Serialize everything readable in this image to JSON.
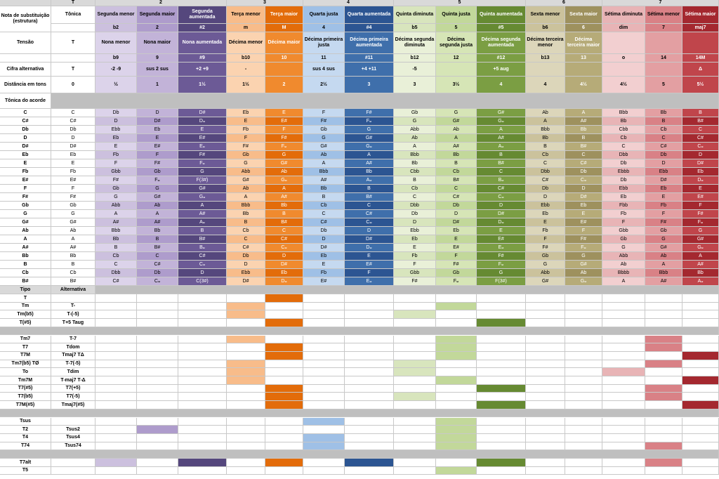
{
  "groups": [
    "T",
    "2",
    "3",
    "4",
    "5",
    "6",
    "7"
  ],
  "columns": [
    {
      "key": "T",
      "name": "Tônica",
      "structure": "",
      "tension": "T",
      "extra": "",
      "alt_cipher": "T",
      "distance": "0",
      "roots": [
        "C",
        "C#",
        "Db",
        "D",
        "D#",
        "Eb",
        "E",
        "Fb",
        "E#",
        "F",
        "F#",
        "Gb",
        "G",
        "G#",
        "Ab",
        "A",
        "A#",
        "Bb",
        "B",
        "Cb",
        "B#"
      ]
    },
    {
      "key": "b2",
      "name": "Segunda menor",
      "structure": "b2",
      "tension": "Nona menor",
      "extra": "b9",
      "alt_cipher": "-2 -9",
      "distance": "½",
      "roots": [
        "Db",
        "D",
        "Ebb",
        "Eb",
        "E",
        "Fb",
        "F",
        "Gbb",
        "F#",
        "Gb",
        "G",
        "Abb",
        "A",
        "A#",
        "Bbb",
        "Bb",
        "B",
        "Cb",
        "C",
        "Dbb",
        "C#"
      ]
    },
    {
      "key": "2",
      "name": "Segunda maior",
      "structure": "2",
      "tension": "Nona maior",
      "extra": "9",
      "alt_cipher": "sus 2 sus",
      "distance": "1",
      "roots": [
        "D",
        "D#",
        "Eb",
        "E",
        "E#",
        "F",
        "F#",
        "Gb",
        "F𝄪",
        "G",
        "G#",
        "Ab",
        "A",
        "A#",
        "Bb",
        "B",
        "B#",
        "C",
        "C#",
        "Db",
        "C𝄪"
      ]
    },
    {
      "key": "#2",
      "name": "Segunda aumentada",
      "structure": "#2",
      "tension": "Nona aumentada",
      "extra": "#9",
      "alt_cipher": "+2 +9",
      "distance": "1½",
      "roots": [
        "D#",
        "D𝄪",
        "E",
        "E#",
        "E𝄪",
        "F#",
        "F𝄪",
        "G",
        "F(3#)",
        "G#",
        "G𝄪",
        "A",
        "A#",
        "A𝄪",
        "B",
        "B#",
        "B𝄪",
        "C#",
        "C𝄪",
        "D",
        "C(3#)"
      ]
    },
    {
      "key": "m",
      "name": "Terça menor",
      "structure": "m",
      "tension": "Décima menor",
      "extra": "b10",
      "alt_cipher": "-",
      "distance": "1½",
      "roots": [
        "Eb",
        "E",
        "Fb",
        "F",
        "F#",
        "Gb",
        "G",
        "Abb",
        "G#",
        "Ab",
        "A",
        "Bbb",
        "Bb",
        "B",
        "Cb",
        "C",
        "C#",
        "Db",
        "D",
        "Ebb",
        "D#"
      ]
    },
    {
      "key": "M",
      "name": "Terça maior",
      "structure": "M",
      "tension": "Décima maior",
      "extra": "10",
      "alt_cipher": "",
      "distance": "2",
      "roots": [
        "E",
        "E#",
        "F",
        "F#",
        "F𝄪",
        "G",
        "G#",
        "Ab",
        "G𝄪",
        "A",
        "A#",
        "Bb",
        "B",
        "B#",
        "C",
        "C#",
        "C𝄪",
        "D",
        "D#",
        "Eb",
        "D𝄪"
      ]
    },
    {
      "key": "4",
      "name": "Quarta justa",
      "structure": "4",
      "tension": "Décima primeira justa",
      "extra": "11",
      "alt_cipher": "sus 4 sus",
      "distance": "2½",
      "roots": [
        "F",
        "F#",
        "Gb",
        "G",
        "G#",
        "Ab",
        "A",
        "Bbb",
        "A#",
        "Bb",
        "B",
        "Cb",
        "C",
        "C#",
        "Db",
        "D",
        "D#",
        "Eb",
        "E",
        "Fb",
        "E#"
      ]
    },
    {
      "key": "#4",
      "name": "Quarta aumentada",
      "structure": "#4",
      "tension": "Décima primeira aumentada",
      "extra": "#11",
      "alt_cipher": "+4 +11",
      "distance": "3",
      "roots": [
        "F#",
        "F𝄪",
        "G",
        "G#",
        "G𝄪",
        "A",
        "A#",
        "Bb",
        "A𝄪",
        "B",
        "B#",
        "C",
        "C#",
        "C𝄪",
        "D",
        "D#",
        "D𝄪",
        "E",
        "E#",
        "F",
        "E𝄪"
      ]
    },
    {
      "key": "b5",
      "name": "Quinta diminuta",
      "structure": "b5",
      "tension": "Décima segunda diminuta",
      "extra": "b12",
      "alt_cipher": "-5",
      "distance": "3",
      "roots": [
        "Gb",
        "G",
        "Abb",
        "Ab",
        "A",
        "Bbb",
        "Bb",
        "Cbb",
        "B",
        "Cb",
        "C",
        "Dbb",
        "Db",
        "D",
        "Ebb",
        "Eb",
        "E",
        "Fb",
        "F",
        "Gbb",
        "F#"
      ]
    },
    {
      "key": "5",
      "name": "Quinta justa",
      "structure": "5",
      "tension": "Décima segunda justa",
      "extra": "12",
      "alt_cipher": "",
      "distance": "3½",
      "roots": [
        "G",
        "G#",
        "Ab",
        "A",
        "A#",
        "Bb",
        "B",
        "Cb",
        "B#",
        "C",
        "C#",
        "Db",
        "D",
        "D#",
        "Eb",
        "E",
        "E#",
        "F",
        "F#",
        "Gb",
        "F𝄪"
      ]
    },
    {
      "key": "#5",
      "name": "Quinta aumentada",
      "structure": "#5",
      "tension": "Décima segunda aumentada",
      "extra": "#12",
      "alt_cipher": "+5 aug",
      "distance": "4",
      "roots": [
        "G#",
        "G𝄪",
        "A",
        "A#",
        "A𝄪",
        "B",
        "B#",
        "C",
        "B𝄪",
        "C#",
        "C𝄪",
        "D",
        "D#",
        "D𝄪",
        "E",
        "E#",
        "E𝄪",
        "F#",
        "F𝄪",
        "G",
        "F(3#)"
      ]
    },
    {
      "key": "b6",
      "name": "Sexta menor",
      "structure": "b6",
      "tension": "Décima terceira menor",
      "extra": "b13",
      "alt_cipher": "",
      "distance": "4",
      "roots": [
        "Ab",
        "A",
        "Bbb",
        "Bb",
        "B",
        "Cb",
        "C",
        "Dbb",
        "C#",
        "Db",
        "D",
        "Ebb",
        "Eb",
        "E",
        "Fb",
        "F",
        "F#",
        "Gb",
        "G",
        "Abb",
        "G#"
      ]
    },
    {
      "key": "6",
      "name": "Sexta maior",
      "structure": "6",
      "tension": "Décima terceira maior",
      "extra": "13",
      "alt_cipher": "",
      "distance": "4½",
      "roots": [
        "A",
        "A#",
        "Bb",
        "B",
        "B#",
        "C",
        "C#",
        "Db",
        "C𝄪",
        "D",
        "D#",
        "Eb",
        "E",
        "E#",
        "F",
        "F#",
        "F𝄪",
        "G",
        "G#",
        "Ab",
        "G𝄪"
      ]
    },
    {
      "key": "dim",
      "name": "Sétima diminuta",
      "structure": "dim",
      "tension": "",
      "extra": "o",
      "alt_cipher": "",
      "distance": "4½",
      "roots": [
        "Bbb",
        "Bb",
        "Cbb",
        "Cb",
        "C",
        "Dbb",
        "Db",
        "Ebbb",
        "Db",
        "Ebb",
        "Eb",
        "Fbb",
        "Fb",
        "F",
        "Gbb",
        "Gb",
        "G",
        "Abb",
        "Ab",
        "Bbbb",
        "A"
      ]
    },
    {
      "key": "7",
      "name": "Sétima menor",
      "structure": "7",
      "tension": "",
      "extra": "14",
      "alt_cipher": "",
      "distance": "5",
      "roots": [
        "Bb",
        "B",
        "Cb",
        "C",
        "C#",
        "Db",
        "D",
        "Ebb",
        "D#",
        "Eb",
        "E",
        "Fb",
        "F",
        "F#",
        "Gb",
        "G",
        "G#",
        "Ab",
        "A",
        "Bbb",
        "A#"
      ]
    },
    {
      "key": "maj7",
      "name": "Sétima maior",
      "structure": "maj7",
      "tension": "",
      "extra": "14M",
      "alt_cipher": "Δ",
      "distance": "5½",
      "roots": [
        "B",
        "B#",
        "C",
        "C#",
        "C𝄪",
        "D",
        "D#",
        "Eb",
        "D𝄪",
        "E",
        "E#",
        "F",
        "F#",
        "F𝄪",
        "G",
        "G#",
        "G𝄪",
        "A",
        "A#",
        "Bb",
        "A𝄪"
      ]
    }
  ],
  "row_labels": {
    "structure": "Nota de substituição (estrutura)",
    "tension": "Tensão",
    "alt_cipher": "Cifra alternativa",
    "distance": "Distância em tons",
    "root": "Tônica do acorde",
    "tipo": "Tipo",
    "alternativa": "Alternativa"
  },
  "colors": {
    "T": "#ffffff",
    "b2": [
      "#dcd3ea",
      "#ccc0de"
    ],
    "2": [
      "#c2b3d8",
      "#ae9ccc"
    ],
    "#2": [
      "#6c5a96",
      "#55477d"
    ],
    "m": [
      "#fbd3b0",
      "#f8bc8a"
    ],
    "M": [
      "#f08a2e",
      "#e36c0a"
    ],
    "4": [
      "#c5d9f0",
      "#9fc0e6"
    ],
    "#4": [
      "#3f6fab",
      "#2c5592"
    ],
    "b5": [
      "#e9f0d8",
      "#d8e5bd"
    ],
    "5": [
      "#d6e5b6",
      "#c2d89a"
    ],
    "#5": [
      "#7b9e43",
      "#668a32"
    ],
    "b6": [
      "#dcd6ba",
      "#cbc29c"
    ],
    "6": [
      "#b6ab78",
      "#9e915e"
    ],
    "dim": [
      "#f2cfd0",
      "#e8b4b6"
    ],
    "7": [
      "#e39fa2",
      "#d98186"
    ],
    "maj7": [
      "#c0454b",
      "#a4282f"
    ]
  },
  "types": [
    {
      "type": "T",
      "alt": "",
      "marks": [
        "M"
      ]
    },
    {
      "type": "Tm",
      "alt": "T-",
      "marks": [
        "m",
        "5"
      ]
    },
    {
      "type": "Tm(b5)",
      "alt": "T-(-5)",
      "marks": [
        "m",
        "b5"
      ]
    },
    {
      "type": "T(#5)",
      "alt": "T+5 Taug",
      "marks": [
        "M",
        "#5"
      ]
    },
    {
      "type": "",
      "alt": "",
      "sep": true,
      "marks": []
    },
    {
      "type": "Tm7",
      "alt": "T-7",
      "marks": [
        "m",
        "5",
        "7"
      ]
    },
    {
      "type": "T7",
      "alt": "Tdom",
      "marks": [
        "M",
        "5",
        "7"
      ]
    },
    {
      "type": "T7M",
      "alt": "Tmaj7 TΔ",
      "marks": [
        "M",
        "5",
        "maj7"
      ]
    },
    {
      "type": "Tm7(b5) TØ",
      "alt": "T-7(-5)",
      "marks": [
        "m",
        "b5",
        "7"
      ]
    },
    {
      "type": "To",
      "alt": "Tdim",
      "marks": [
        "m",
        "b5",
        "dim"
      ]
    },
    {
      "type": "Tm7M",
      "alt": "T-maj7 T-Δ",
      "marks": [
        "m",
        "5",
        "maj7"
      ]
    },
    {
      "type": "T7(#5)",
      "alt": "T7(+5)",
      "marks": [
        "M",
        "#5",
        "7"
      ]
    },
    {
      "type": "T7(b5)",
      "alt": "T7(-5)",
      "marks": [
        "M",
        "b5",
        "7"
      ]
    },
    {
      "type": "T7M(#5)",
      "alt": "Tmaj7(#5)",
      "marks": [
        "M",
        "#5",
        "maj7"
      ]
    },
    {
      "type": "",
      "alt": "",
      "sep": true,
      "marks": []
    },
    {
      "type": "Tsus",
      "alt": "",
      "marks": [
        "4",
        "5"
      ]
    },
    {
      "type": "T2",
      "alt": "Tsus2",
      "marks": [
        "2",
        "5"
      ]
    },
    {
      "type": "T4",
      "alt": "Tsus4",
      "marks": [
        "4",
        "5"
      ]
    },
    {
      "type": "T74",
      "alt": "Tsus74",
      "marks": [
        "4",
        "5",
        "7"
      ]
    },
    {
      "type": "",
      "alt": "",
      "sep": true,
      "marks": []
    },
    {
      "type": "T7alt",
      "alt": "",
      "marks": [
        "b2",
        "#2",
        "M",
        "#4",
        "#5",
        "7"
      ]
    },
    {
      "type": "T5",
      "alt": "",
      "marks": [
        "5"
      ]
    }
  ]
}
